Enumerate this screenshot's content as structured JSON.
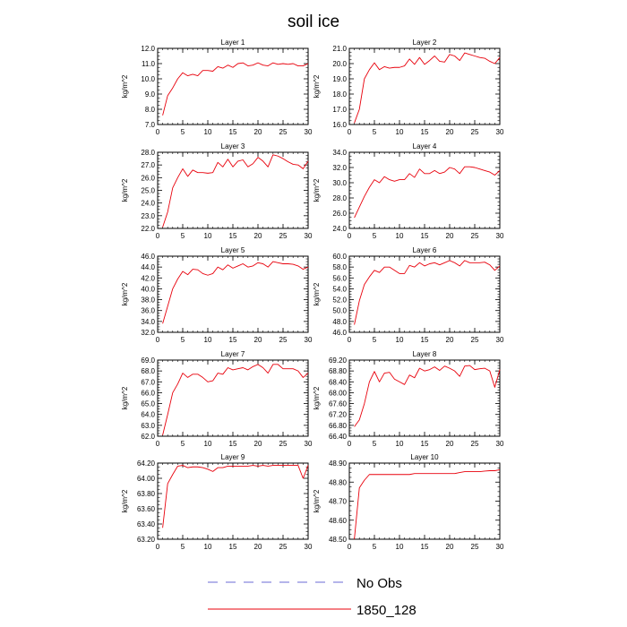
{
  "title": "soil ice",
  "legend": [
    {
      "label": "No Obs",
      "color": "#6b6bd6",
      "dash": true
    },
    {
      "label": "1850_128",
      "color": "#e8000b",
      "dash": false
    }
  ],
  "chart_data": [
    {
      "type": "line",
      "title": "Layer 1",
      "ylabel": "kg/m^2",
      "xlim": [
        0,
        30
      ],
      "xticks": [
        0,
        5,
        10,
        15,
        20,
        25,
        30
      ],
      "ylim": [
        7.0,
        12.0
      ],
      "yticks": [
        "7.0",
        "8.0",
        "9.0",
        "10.0",
        "11.0",
        "12.0"
      ],
      "series": [
        {
          "color": "#e8000b",
          "x": [
            1,
            2,
            3,
            4,
            5,
            6,
            7,
            8,
            9,
            10,
            11,
            12,
            13,
            14,
            15,
            16,
            17,
            18,
            19,
            20,
            21,
            22,
            23,
            24,
            25,
            26,
            27,
            28,
            29,
            30
          ],
          "values": [
            7.6,
            8.9,
            9.4,
            10.0,
            10.4,
            10.2,
            10.3,
            10.2,
            10.55,
            10.55,
            10.5,
            10.8,
            10.7,
            10.9,
            10.75,
            11.0,
            11.05,
            10.85,
            10.9,
            11.05,
            10.9,
            10.85,
            11.05,
            10.95,
            11.0,
            10.95,
            11.0,
            10.85,
            10.85,
            11.0
          ]
        }
      ]
    },
    {
      "type": "line",
      "title": "Layer 2",
      "ylabel": "kg/m^2",
      "xlim": [
        0,
        30
      ],
      "xticks": [
        0,
        5,
        10,
        15,
        20,
        25,
        30
      ],
      "ylim": [
        16.0,
        21.0
      ],
      "yticks": [
        "16.0",
        "17.0",
        "18.0",
        "19.0",
        "20.0",
        "21.0"
      ],
      "series": [
        {
          "color": "#e8000b",
          "x": [
            1,
            2,
            3,
            4,
            5,
            6,
            7,
            8,
            9,
            10,
            11,
            12,
            13,
            14,
            15,
            16,
            17,
            18,
            19,
            20,
            21,
            22,
            23,
            24,
            25,
            26,
            27,
            28,
            29,
            30
          ],
          "values": [
            16.1,
            17.0,
            19.0,
            19.6,
            20.05,
            19.6,
            19.8,
            19.7,
            19.75,
            19.75,
            19.85,
            20.3,
            19.95,
            20.4,
            19.95,
            20.2,
            20.5,
            20.15,
            20.1,
            20.6,
            20.5,
            20.2,
            20.7,
            20.6,
            20.5,
            20.4,
            20.35,
            20.15,
            20.0,
            20.4
          ]
        }
      ]
    },
    {
      "type": "line",
      "title": "Layer 3",
      "ylabel": "kg/m^2",
      "xlim": [
        0,
        30
      ],
      "xticks": [
        0,
        5,
        10,
        15,
        20,
        25,
        30
      ],
      "ylim": [
        22.0,
        28.0
      ],
      "yticks": [
        "22.0",
        "23.0",
        "24.0",
        "25.0",
        "26.0",
        "27.0",
        "28.0"
      ],
      "series": [
        {
          "color": "#e8000b",
          "x": [
            1,
            2,
            3,
            4,
            5,
            6,
            7,
            8,
            9,
            10,
            11,
            12,
            13,
            14,
            15,
            16,
            17,
            18,
            19,
            20,
            21,
            22,
            23,
            24,
            25,
            26,
            27,
            28,
            29,
            30
          ],
          "values": [
            22.1,
            23.3,
            25.2,
            26.0,
            26.7,
            26.1,
            26.6,
            26.4,
            26.4,
            26.35,
            26.4,
            27.2,
            26.85,
            27.45,
            26.85,
            27.3,
            27.4,
            26.85,
            27.1,
            27.6,
            27.3,
            26.85,
            27.8,
            27.7,
            27.5,
            27.25,
            27.05,
            27.0,
            26.7,
            27.3
          ]
        }
      ]
    },
    {
      "type": "line",
      "title": "Layer 4",
      "ylabel": "kg/m^2",
      "xlim": [
        0,
        30
      ],
      "xticks": [
        0,
        5,
        10,
        15,
        20,
        25,
        30
      ],
      "ylim": [
        24.0,
        34.0
      ],
      "yticks": [
        "24.0",
        "26.0",
        "28.0",
        "30.0",
        "32.0",
        "34.0"
      ],
      "series": [
        {
          "color": "#e8000b",
          "x": [
            1,
            2,
            3,
            4,
            5,
            6,
            7,
            8,
            9,
            10,
            11,
            12,
            13,
            14,
            15,
            16,
            17,
            18,
            19,
            20,
            21,
            22,
            23,
            24,
            25,
            26,
            27,
            28,
            29,
            30
          ],
          "values": [
            25.4,
            26.8,
            28.2,
            29.4,
            30.4,
            30.0,
            30.8,
            30.4,
            30.2,
            30.4,
            30.4,
            31.2,
            30.7,
            31.8,
            31.2,
            31.2,
            31.6,
            31.2,
            31.4,
            32.0,
            31.8,
            31.2,
            32.1,
            32.1,
            32.0,
            31.8,
            31.6,
            31.4,
            31.0,
            31.6
          ]
        }
      ]
    },
    {
      "type": "line",
      "title": "Layer 5",
      "ylabel": "kg/m^2",
      "xlim": [
        0,
        30
      ],
      "xticks": [
        0,
        5,
        10,
        15,
        20,
        25,
        30
      ],
      "ylim": [
        32.0,
        46.0
      ],
      "yticks": [
        "32.0",
        "34.0",
        "36.0",
        "38.0",
        "40.0",
        "42.0",
        "44.0",
        "46.0"
      ],
      "series": [
        {
          "color": "#e8000b",
          "x": [
            1,
            2,
            3,
            4,
            5,
            6,
            7,
            8,
            9,
            10,
            11,
            12,
            13,
            14,
            15,
            16,
            17,
            18,
            19,
            20,
            21,
            22,
            23,
            24,
            25,
            26,
            27,
            28,
            29,
            30
          ],
          "values": [
            33.6,
            36.8,
            40.0,
            41.8,
            43.2,
            42.6,
            43.6,
            43.5,
            42.8,
            42.5,
            42.8,
            44.0,
            43.5,
            44.4,
            43.8,
            44.2,
            44.6,
            44.0,
            44.2,
            44.8,
            44.6,
            44.0,
            45.0,
            44.8,
            44.6,
            44.6,
            44.5,
            44.2,
            43.6,
            44.0
          ]
        }
      ]
    },
    {
      "type": "line",
      "title": "Layer 6",
      "ylabel": "kg/m^2",
      "xlim": [
        0,
        30
      ],
      "xticks": [
        0,
        5,
        10,
        15,
        20,
        25,
        30
      ],
      "ylim": [
        46.0,
        60.0
      ],
      "yticks": [
        "46.0",
        "48.0",
        "50.0",
        "52.0",
        "54.0",
        "56.0",
        "58.0",
        "60.0"
      ],
      "series": [
        {
          "color": "#e8000b",
          "x": [
            1,
            2,
            3,
            4,
            5,
            6,
            7,
            8,
            9,
            10,
            11,
            12,
            13,
            14,
            15,
            16,
            17,
            18,
            19,
            20,
            21,
            22,
            23,
            24,
            25,
            26,
            27,
            28,
            29,
            30
          ],
          "values": [
            47.4,
            51.8,
            54.8,
            56.2,
            57.4,
            57.0,
            58.0,
            58.0,
            57.4,
            56.8,
            56.8,
            58.3,
            58.0,
            58.8,
            58.2,
            58.6,
            58.8,
            58.4,
            58.8,
            59.2,
            58.8,
            58.2,
            59.2,
            58.8,
            58.8,
            58.8,
            58.9,
            58.4,
            57.4,
            58.2
          ]
        }
      ]
    },
    {
      "type": "line",
      "title": "Layer 7",
      "ylabel": "kg/m^2",
      "xlim": [
        0,
        30
      ],
      "xticks": [
        0,
        5,
        10,
        15,
        20,
        25,
        30
      ],
      "ylim": [
        62.0,
        69.0
      ],
      "yticks": [
        "62.0",
        "63.0",
        "64.0",
        "65.0",
        "66.0",
        "67.0",
        "68.0",
        "69.0"
      ],
      "series": [
        {
          "color": "#e8000b",
          "x": [
            1,
            2,
            3,
            4,
            5,
            6,
            7,
            8,
            9,
            10,
            11,
            12,
            13,
            14,
            15,
            16,
            17,
            18,
            19,
            20,
            21,
            22,
            23,
            24,
            25,
            26,
            27,
            28,
            29,
            30
          ],
          "values": [
            62.1,
            64.0,
            66.0,
            66.8,
            67.8,
            67.4,
            67.7,
            67.7,
            67.4,
            67.0,
            67.1,
            67.8,
            67.7,
            68.3,
            68.1,
            68.2,
            68.3,
            68.1,
            68.4,
            68.6,
            68.3,
            67.8,
            68.6,
            68.6,
            68.2,
            68.2,
            68.2,
            68.0,
            67.4,
            67.8
          ]
        }
      ]
    },
    {
      "type": "line",
      "title": "Layer 8",
      "ylabel": "kg/m^2",
      "xlim": [
        0,
        30
      ],
      "xticks": [
        0,
        5,
        10,
        15,
        20,
        25,
        30
      ],
      "ylim": [
        66.4,
        69.2
      ],
      "yticks": [
        "66.40",
        "66.80",
        "67.20",
        "67.60",
        "68.00",
        "68.40",
        "68.80",
        "69.20"
      ],
      "series": [
        {
          "color": "#e8000b",
          "x": [
            1,
            2,
            3,
            4,
            5,
            6,
            7,
            8,
            9,
            10,
            11,
            12,
            13,
            14,
            15,
            16,
            17,
            18,
            19,
            20,
            21,
            22,
            23,
            24,
            25,
            26,
            27,
            28,
            29,
            30
          ],
          "values": [
            66.75,
            67.0,
            67.6,
            68.4,
            68.78,
            68.4,
            68.72,
            68.75,
            68.5,
            68.4,
            68.3,
            68.65,
            68.55,
            68.9,
            68.8,
            68.85,
            68.95,
            68.82,
            68.98,
            68.9,
            68.8,
            68.6,
            68.98,
            69.0,
            68.85,
            68.88,
            68.9,
            68.8,
            68.2,
            68.85
          ]
        }
      ]
    },
    {
      "type": "line",
      "title": "Layer 9",
      "ylabel": "kg/m^2",
      "xlim": [
        0,
        30
      ],
      "xticks": [
        0,
        5,
        10,
        15,
        20,
        25,
        30
      ],
      "ylim": [
        63.2,
        64.2
      ],
      "yticks": [
        "63.20",
        "63.40",
        "63.60",
        "63.80",
        "64.00",
        "64.20"
      ],
      "series": [
        {
          "color": "#e8000b",
          "x": [
            1,
            2,
            3,
            4,
            5,
            6,
            7,
            8,
            9,
            10,
            11,
            12,
            13,
            14,
            15,
            16,
            17,
            18,
            19,
            20,
            21,
            22,
            23,
            24,
            25,
            26,
            27,
            28,
            29,
            30
          ],
          "values": [
            63.35,
            63.93,
            64.05,
            64.16,
            64.17,
            64.14,
            64.15,
            64.15,
            64.14,
            64.12,
            64.09,
            64.14,
            64.14,
            64.16,
            64.16,
            64.16,
            64.16,
            64.16,
            64.17,
            64.16,
            64.17,
            64.16,
            64.17,
            64.17,
            64.17,
            64.17,
            64.17,
            64.17,
            64.0,
            64.17
          ]
        }
      ]
    },
    {
      "type": "line",
      "title": "Layer 10",
      "ylabel": "kg/m^2",
      "xlim": [
        0,
        30
      ],
      "xticks": [
        0,
        5,
        10,
        15,
        20,
        25,
        30
      ],
      "ylim": [
        48.5,
        48.9
      ],
      "yticks": [
        "48.50",
        "48.60",
        "48.70",
        "48.80",
        "48.90"
      ],
      "series": [
        {
          "color": "#e8000b",
          "x": [
            1,
            2,
            3,
            4,
            5,
            6,
            7,
            8,
            9,
            10,
            11,
            12,
            13,
            14,
            15,
            16,
            17,
            18,
            19,
            20,
            21,
            22,
            23,
            24,
            25,
            26,
            27,
            28,
            29,
            30
          ],
          "values": [
            48.5,
            48.77,
            48.81,
            48.84,
            48.84,
            48.84,
            48.84,
            48.84,
            48.84,
            48.84,
            48.84,
            48.84,
            48.845,
            48.845,
            48.845,
            48.845,
            48.845,
            48.845,
            48.845,
            48.845,
            48.845,
            48.85,
            48.855,
            48.855,
            48.855,
            48.855,
            48.858,
            48.86,
            48.86,
            48.865
          ]
        }
      ]
    }
  ]
}
